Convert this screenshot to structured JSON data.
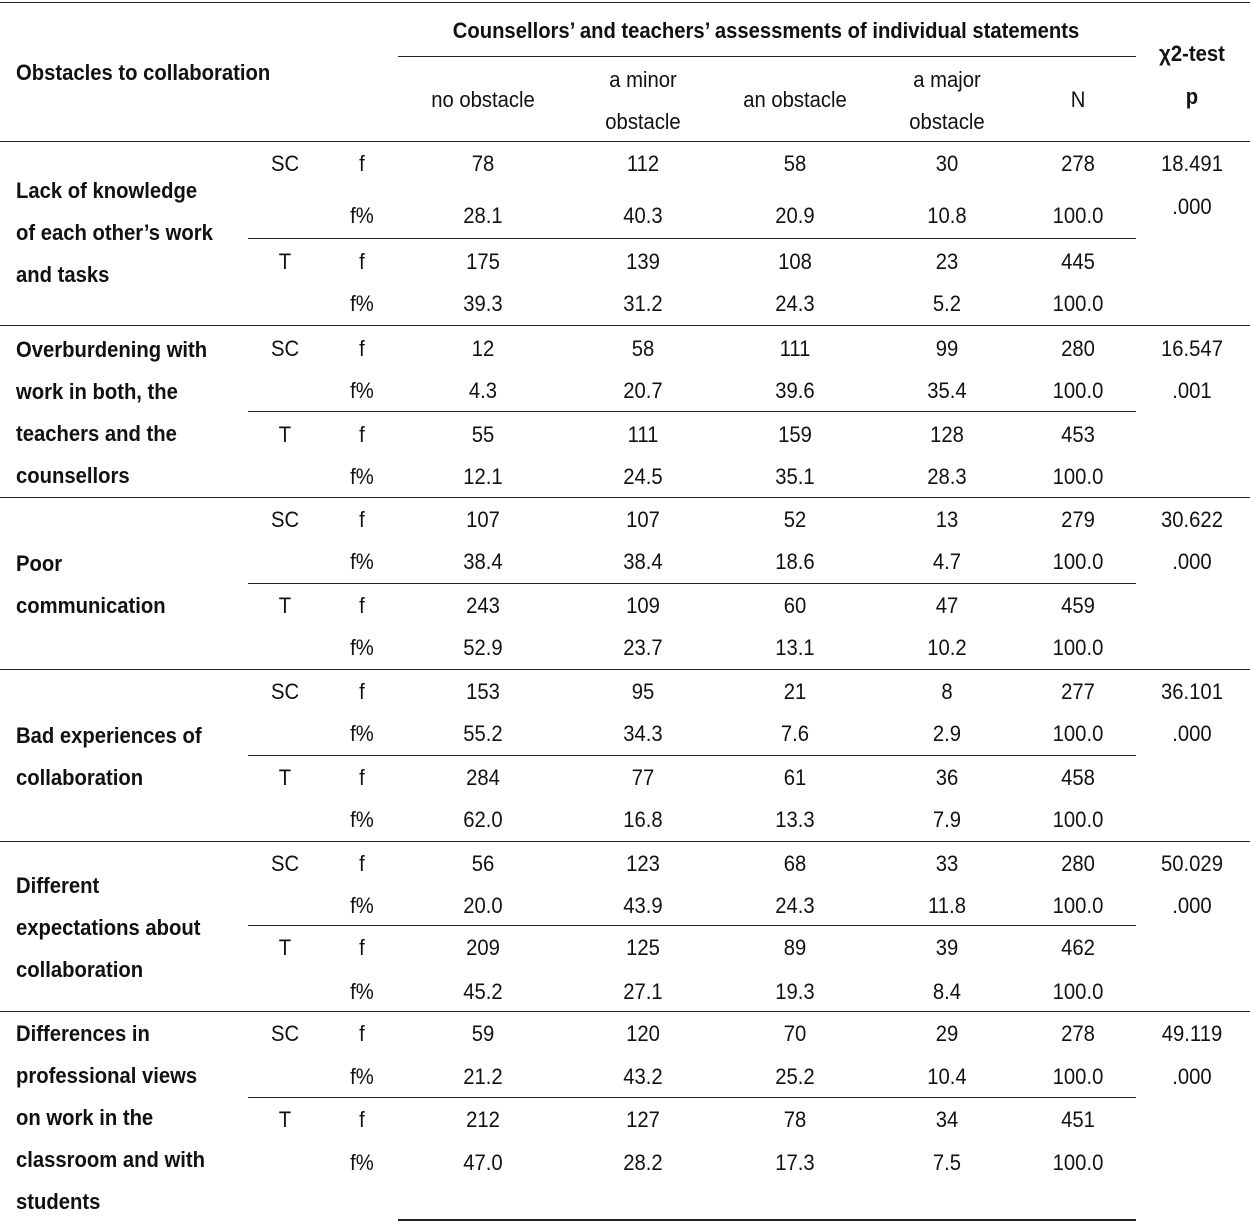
{
  "header": {
    "obstacles_label": "Obstacles to collaboration",
    "assessments_label": "Counsellors’ and teachers’ assessments of individual statements",
    "chi_label": "χ2-test",
    "p_label": "p",
    "col_no_obstacle": "no obstacle",
    "col_minor_1": "a minor",
    "col_minor_2": "obstacle",
    "col_obstacle": "an obstacle",
    "col_major_1": "a major",
    "col_major_2": "obstacle",
    "col_n": "N"
  },
  "groups": [
    {
      "label": "Lack of knowledge\nof each other’s work\nand tasks",
      "chi": "18.491",
      "p": ".000",
      "sc_label": "SC",
      "t_label": "T",
      "f_label": "f",
      "fp_label": "f%",
      "sc_f": [
        "78",
        "112",
        "58",
        "30",
        "278"
      ],
      "sc_fp": [
        "28.1",
        "40.3",
        "20.9",
        "10.8",
        "100.0"
      ],
      "t_f": [
        "175",
        "139",
        "108",
        "23",
        "445"
      ],
      "t_fp": [
        "39.3",
        "31.2",
        "24.3",
        "5.2",
        "100.0"
      ]
    },
    {
      "label": "Overburdening with\nwork in both, the\nteachers and the\ncounsellors",
      "chi": "16.547",
      "p": ".001",
      "sc_label": "SC",
      "t_label": "T",
      "f_label": "f",
      "fp_label": "f%",
      "sc_f": [
        "12",
        "58",
        "111",
        "99",
        "280"
      ],
      "sc_fp": [
        "4.3",
        "20.7",
        "39.6",
        "35.4",
        "100.0"
      ],
      "t_f": [
        "55",
        "111",
        "159",
        "128",
        "453"
      ],
      "t_fp": [
        "12.1",
        "24.5",
        "35.1",
        "28.3",
        "100.0"
      ]
    },
    {
      "label": "Poor\ncommunication",
      "chi": "30.622",
      "p": ".000",
      "sc_label": "SC",
      "t_label": "T",
      "f_label": "f",
      "fp_label": "f%",
      "sc_f": [
        "107",
        "107",
        "52",
        "13",
        "279"
      ],
      "sc_fp": [
        "38.4",
        "38.4",
        "18.6",
        "4.7",
        "100.0"
      ],
      "t_f": [
        "243",
        "109",
        "60",
        "47",
        "459"
      ],
      "t_fp": [
        "52.9",
        "23.7",
        "13.1",
        "10.2",
        "100.0"
      ]
    },
    {
      "label": "Bad experiences of\ncollaboration",
      "chi": "36.101",
      "p": ".000",
      "sc_label": "SC",
      "t_label": "T",
      "f_label": "f",
      "fp_label": "f%",
      "sc_f": [
        "153",
        "95",
        "21",
        "8",
        "277"
      ],
      "sc_fp": [
        "55.2",
        "34.3",
        "7.6",
        "2.9",
        "100.0"
      ],
      "t_f": [
        "284",
        "77",
        "61",
        "36",
        "458"
      ],
      "t_fp": [
        "62.0",
        "16.8",
        "13.3",
        "7.9",
        "100.0"
      ]
    },
    {
      "label": "Different\nexpectations about\ncollaboration",
      "chi": "50.029",
      "p": ".000",
      "sc_label": "SC",
      "t_label": "T",
      "f_label": "f",
      "fp_label": "f%",
      "sc_f": [
        "56",
        "123",
        "68",
        "33",
        "280"
      ],
      "sc_fp": [
        "20.0",
        "43.9",
        "24.3",
        "11.8",
        "100.0"
      ],
      "t_f": [
        "209",
        "125",
        "89",
        "39",
        "462"
      ],
      "t_fp": [
        "45.2",
        "27.1",
        "19.3",
        "8.4",
        "100.0"
      ]
    },
    {
      "label": "Differences in\nprofessional views\non work in the\nclassroom and with\nstudents",
      "chi": "49.119",
      "p": ".000",
      "sc_label": "SC",
      "t_label": "T",
      "f_label": "f",
      "fp_label": "f%",
      "sc_f": [
        "59",
        "120",
        "70",
        "29",
        "278"
      ],
      "sc_fp": [
        "21.2",
        "43.2",
        "25.2",
        "10.4",
        "100.0"
      ],
      "t_f": [
        "212",
        "127",
        "78",
        "34",
        "451"
      ],
      "t_fp": [
        "47.0",
        "28.2",
        "17.3",
        "7.5",
        "100.0"
      ]
    }
  ]
}
